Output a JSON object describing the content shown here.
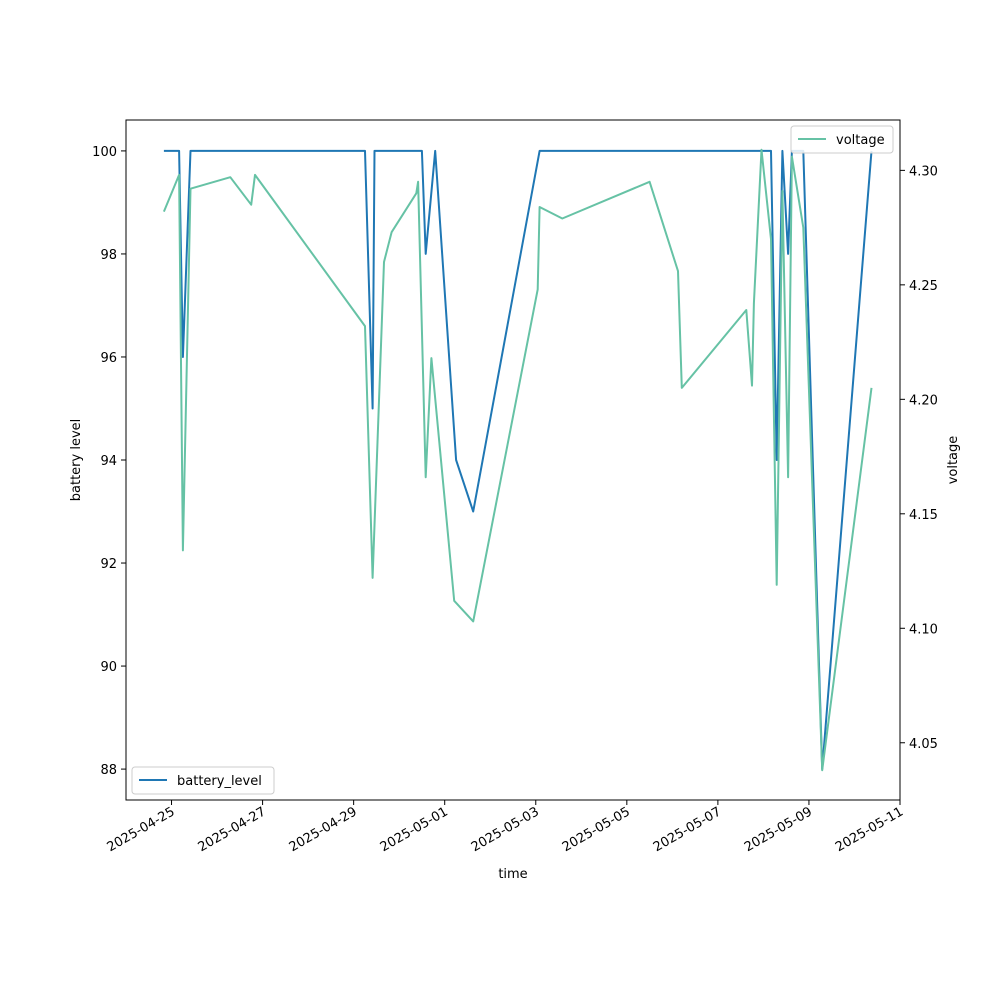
{
  "chart_data": {
    "type": "line",
    "title": "",
    "xlabel": "time",
    "ylabel_left": "battery level",
    "ylabel_right": "voltage",
    "grid": false,
    "x_range": [
      "2025-04-24T00:00",
      "2025-05-11T00:00"
    ],
    "ylim_left": [
      87.4,
      100.6
    ],
    "ylim_right": [
      4.025,
      4.322
    ],
    "x_ticks": [
      "2025-04-25",
      "2025-04-27",
      "2025-04-29",
      "2025-05-01",
      "2025-05-03",
      "2025-05-05",
      "2025-05-07",
      "2025-05-09",
      "2025-05-11"
    ],
    "y_ticks_left": [
      "88",
      "90",
      "92",
      "94",
      "96",
      "98",
      "100"
    ],
    "y_ticks_right": [
      "4.05",
      "4.10",
      "4.15",
      "4.20",
      "4.25",
      "4.30"
    ],
    "series": [
      {
        "name": "battery_level",
        "axis": "left",
        "color": "#1f77b4",
        "legend_position": "lower-left",
        "points": [
          [
            "2025-04-24T20:00",
            100
          ],
          [
            "2025-04-25T04:00",
            100
          ],
          [
            "2025-04-25T06:00",
            96
          ],
          [
            "2025-04-25T10:00",
            100
          ],
          [
            "2025-04-29T06:00",
            100
          ],
          [
            "2025-04-29T10:00",
            95
          ],
          [
            "2025-04-29T11:00",
            100
          ],
          [
            "2025-04-30T12:00",
            100
          ],
          [
            "2025-04-30T14:00",
            98
          ],
          [
            "2025-04-30T19:00",
            100
          ],
          [
            "2025-05-01T06:00",
            94
          ],
          [
            "2025-05-01T15:00",
            93
          ],
          [
            "2025-05-03T02:00",
            100
          ],
          [
            "2025-05-08T04:00",
            100
          ],
          [
            "2025-05-08T07:00",
            94
          ],
          [
            "2025-05-08T10:00",
            100
          ],
          [
            "2025-05-08T13:00",
            98
          ],
          [
            "2025-05-08T15:00",
            100
          ],
          [
            "2025-05-08T21:00",
            100
          ],
          [
            "2025-05-09T07:00",
            88
          ],
          [
            "2025-05-10T09:00",
            100
          ]
        ]
      },
      {
        "name": "voltage",
        "axis": "right",
        "color": "#66c2a5",
        "legend_position": "upper-right",
        "points": [
          [
            "2025-04-24T20:00",
            4.282
          ],
          [
            "2025-04-25T04:00",
            4.298
          ],
          [
            "2025-04-25T06:00",
            4.134
          ],
          [
            "2025-04-25T10:00",
            4.292
          ],
          [
            "2025-04-26T07:00",
            4.297
          ],
          [
            "2025-04-26T18:00",
            4.285
          ],
          [
            "2025-04-26T20:00",
            4.298
          ],
          [
            "2025-04-29T06:00",
            4.232
          ],
          [
            "2025-04-29T10:00",
            4.122
          ],
          [
            "2025-04-29T16:00",
            4.26
          ],
          [
            "2025-04-29T20:00",
            4.273
          ],
          [
            "2025-04-30T09:00",
            4.29
          ],
          [
            "2025-04-30T10:00",
            4.295
          ],
          [
            "2025-04-30T14:00",
            4.166
          ],
          [
            "2025-04-30T17:00",
            4.218
          ],
          [
            "2025-05-01T05:00",
            4.112
          ],
          [
            "2025-05-01T15:00",
            4.103
          ],
          [
            "2025-05-03T01:00",
            4.248
          ],
          [
            "2025-05-03T02:00",
            4.284
          ],
          [
            "2025-05-03T14:00",
            4.279
          ],
          [
            "2025-05-05T12:00",
            4.295
          ],
          [
            "2025-05-06T03:00",
            4.256
          ],
          [
            "2025-05-06T05:00",
            4.205
          ],
          [
            "2025-05-07T15:00",
            4.239
          ],
          [
            "2025-05-07T18:00",
            4.206
          ],
          [
            "2025-05-07T19:00",
            4.242
          ],
          [
            "2025-05-07T23:00",
            4.309
          ],
          [
            "2025-05-08T04:00",
            4.27
          ],
          [
            "2025-05-08T07:00",
            4.119
          ],
          [
            "2025-05-08T10:00",
            4.291
          ],
          [
            "2025-05-08T13:00",
            4.166
          ],
          [
            "2025-05-08T15:00",
            4.306
          ],
          [
            "2025-05-08T21:00",
            4.275
          ],
          [
            "2025-05-09T07:00",
            4.038
          ],
          [
            "2025-05-10T09:00",
            4.205
          ]
        ]
      }
    ]
  }
}
